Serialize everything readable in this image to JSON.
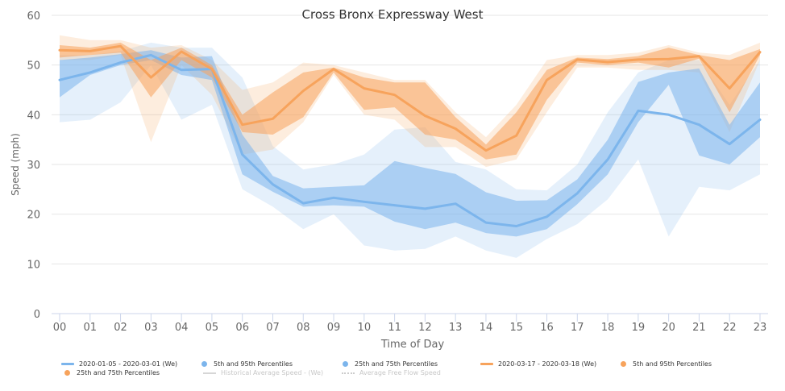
{
  "chart_data": {
    "type": "line",
    "title": "Cross Bronx Expressway West",
    "xlabel": "Time of Day",
    "ylabel": "Speed (mph)",
    "ylim": [
      0,
      60
    ],
    "yticks": [
      0,
      10,
      20,
      30,
      40,
      50,
      60
    ],
    "categories": [
      "00",
      "01",
      "02",
      "03",
      "04",
      "05",
      "06",
      "07",
      "08",
      "09",
      "10",
      "11",
      "12",
      "13",
      "14",
      "15",
      "16",
      "17",
      "18",
      "19",
      "20",
      "21",
      "22",
      "23"
    ],
    "grid": true,
    "legend_position": "bottom",
    "series": [
      {
        "name": "2020-01-05 - 2020-03-01 (We)",
        "color": "#7cb5ec",
        "values": [
          47,
          48.5,
          50.5,
          52,
          49,
          49.2,
          32,
          26,
          22.2,
          23.3,
          22.5,
          21.8,
          21.1,
          22.1,
          18.3,
          17.6,
          19.5,
          24.2,
          31,
          40.8,
          40,
          38,
          34.1,
          39
        ],
        "p25": [
          43.5,
          48,
          50,
          51,
          48,
          47,
          28,
          24.5,
          21.5,
          21.8,
          21.5,
          18.5,
          17,
          18.3,
          16.2,
          15.5,
          17,
          22,
          28,
          38.5,
          46,
          31.8,
          30,
          35.5
        ],
        "p75": [
          51,
          51.5,
          52.2,
          53,
          51.5,
          51.8,
          36,
          27.7,
          25.2,
          25.5,
          25.8,
          30.7,
          29.3,
          28.1,
          24.4,
          22.7,
          22.8,
          27,
          35,
          46.6,
          48.5,
          49.3,
          38,
          46.5
        ],
        "p5": [
          38.5,
          39,
          42.5,
          50,
          39,
          42,
          25,
          21.5,
          17,
          20,
          13.7,
          12.7,
          13,
          15.5,
          12.7,
          11.2,
          15,
          18,
          23,
          31,
          15.5,
          25.5,
          24.8,
          28
        ],
        "p95": [
          52,
          52,
          52.8,
          54.5,
          53.5,
          53.5,
          47.5,
          33.7,
          29,
          30,
          32,
          37,
          37.5,
          30.5,
          29,
          25,
          24.8,
          30,
          40.5,
          48.5,
          51,
          51,
          42,
          51
        ]
      },
      {
        "name": "2020-03-17 - 2020-03-18 (We)",
        "color": "#f7a35c",
        "values": [
          53,
          52.8,
          53.8,
          47.5,
          52.7,
          49.2,
          38,
          39.2,
          44.8,
          49.2,
          45.3,
          44,
          39.8,
          37.2,
          32.8,
          35.8,
          47,
          51.1,
          50.6,
          51.1,
          51.2,
          51.8,
          45.3,
          52.6
        ],
        "p25": [
          51.5,
          52,
          52.5,
          43.5,
          51,
          47.5,
          36.5,
          36,
          39.5,
          48.5,
          41,
          41.5,
          36,
          35,
          31,
          32,
          43,
          50.5,
          50,
          50.5,
          49.5,
          51.3,
          40.5,
          52
        ],
        "p75": [
          54,
          53.5,
          54.5,
          51,
          53.5,
          50,
          40,
          44.5,
          48.5,
          49.5,
          47.5,
          46.5,
          46.5,
          39.5,
          34,
          40.5,
          49,
          51.5,
          51.2,
          51.8,
          53.5,
          52,
          51,
          53.2
        ],
        "p5": [
          51,
          51,
          52,
          34.5,
          50,
          44,
          32,
          33,
          38.5,
          48,
          40,
          39,
          33.5,
          33.5,
          29.5,
          31,
          40.5,
          49.5,
          49.5,
          49,
          49,
          48.5,
          36.5,
          51
        ],
        "p95": [
          56,
          55,
          55,
          53.5,
          54,
          51,
          45,
          46.5,
          50.5,
          50,
          48.5,
          47,
          47,
          40.5,
          35.5,
          42,
          51,
          52,
          52,
          52.5,
          54,
          52.5,
          52,
          54.5
        ]
      }
    ]
  },
  "legend": {
    "row1": [
      {
        "label": "2020-01-05 - 2020-03-01 (We)",
        "kind": "line",
        "color": "#7cb5ec"
      },
      {
        "label": "5th and 95th Percentiles",
        "kind": "dot",
        "color": "#7cb5ec"
      },
      {
        "label": "25th and 75th Percentiles",
        "kind": "dot",
        "color": "#7cb5ec"
      },
      {
        "label": "2020-03-17 - 2020-03-18 (We)",
        "kind": "line",
        "color": "#f7a35c"
      },
      {
        "label": "5th and 95th Percentiles",
        "kind": "dot",
        "color": "#f7a35c"
      }
    ],
    "row2": [
      {
        "label": "25th and 75th Percentiles",
        "kind": "dot",
        "color": "#f7a35c"
      },
      {
        "label": "Historical Average Speed - (We)",
        "kind": "grey"
      },
      {
        "label": "Average Free Flow Speed",
        "kind": "dotted"
      }
    ]
  }
}
